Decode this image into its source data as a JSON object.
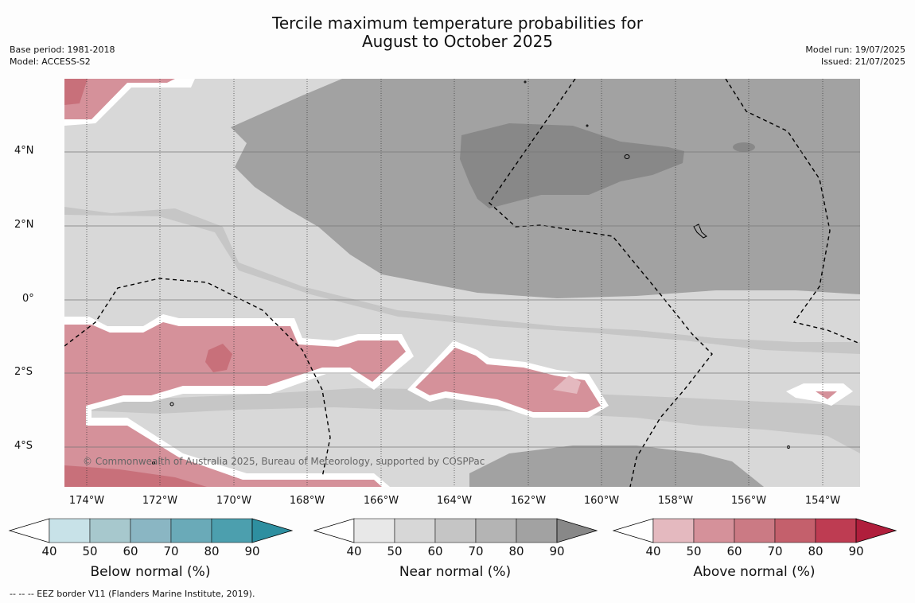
{
  "title_line1": "Tercile maximum temperature probabilities for",
  "title_line2": "August to October 2025",
  "base_period": "Base period: 1981-2018",
  "model": "Model: ACCESS-S2",
  "model_run": "Model run: 19/07/2025",
  "issued": "Issued: 21/07/2025",
  "map": {
    "copyright": "© Commonwealth of Australia 2025, Bureau of Meteorology, supported by COSPPac",
    "lat_labels": [
      "4°N",
      "2°N",
      "0°",
      "2°S",
      "4°S"
    ],
    "lon_labels": [
      "174°W",
      "172°W",
      "170°W",
      "168°W",
      "166°W",
      "164°W",
      "162°W",
      "160°W",
      "158°W",
      "156°W",
      "154°W"
    ],
    "colors": {
      "near_40_50": "#d8d8d8",
      "near_50_60": "#c6c6c6",
      "near_60_70": "#b4b4b4",
      "near_70_80": "#a2a2a2",
      "near_80_90": "#888888",
      "above_50_60": "#d59098",
      "above_60_70": "#c8707a"
    }
  },
  "colorbars": [
    {
      "label": "Below normal (%)",
      "ticks": [
        "40",
        "50",
        "60",
        "70",
        "80",
        "90"
      ],
      "colors": [
        "#ffffff",
        "#c8e2e8",
        "#a7c8cd",
        "#8ab6c3",
        "#6aaab8",
        "#4c9fae",
        "#2e8fa0"
      ]
    },
    {
      "label": "Near normal (%)",
      "ticks": [
        "40",
        "50",
        "60",
        "70",
        "80",
        "90"
      ],
      "colors": [
        "#ffffff",
        "#e8e8e8",
        "#d7d7d7",
        "#c5c5c5",
        "#b4b4b4",
        "#a2a2a2",
        "#888888"
      ]
    },
    {
      "label": "Above normal (%)",
      "ticks": [
        "40",
        "50",
        "60",
        "70",
        "80",
        "90"
      ],
      "colors": [
        "#ffffff",
        "#e4b9bf",
        "#d5919a",
        "#cb7a84",
        "#c4606c",
        "#be3c52",
        "#b01e3c"
      ]
    }
  ],
  "footnote": "-- -- -- EEZ border V11 (Flanders Marine Institute, 2019)."
}
